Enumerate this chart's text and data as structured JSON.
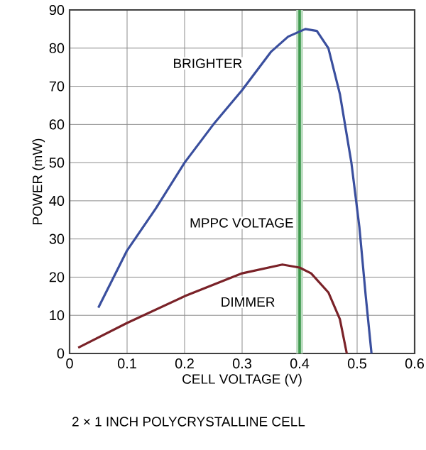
{
  "chart_data": {
    "type": "line",
    "xlabel": "CELL VOLTAGE (V)",
    "ylabel": "POWER (mW)",
    "x": [
      0.05,
      0.1,
      0.15,
      0.2,
      0.25,
      0.3,
      0.35,
      0.38,
      0.41,
      0.43,
      0.45,
      0.47,
      0.49,
      0.504,
      0.515,
      0.525
    ],
    "series": [
      {
        "name": "BRIGHTER",
        "color": "#3a4f9e",
        "values": [
          12,
          27,
          38,
          50,
          60,
          69,
          79,
          83,
          85,
          84.5,
          80,
          68,
          50,
          33,
          15,
          0
        ]
      },
      {
        "name": "DIMMER",
        "color": "#7a2228",
        "x": [
          0.015,
          0.1,
          0.2,
          0.3,
          0.37,
          0.4,
          0.42,
          0.45,
          0.47,
          0.482
        ],
        "values": [
          1.5,
          8,
          15,
          21,
          23.3,
          22.5,
          21,
          16,
          9,
          0
        ]
      }
    ],
    "xlim": [
      0,
      0.6
    ],
    "xticks": [
      0,
      0.1,
      0.2,
      0.3,
      0.4,
      0.5,
      0.6
    ],
    "ylim": [
      0,
      90
    ],
    "yticks": [
      0,
      10,
      20,
      30,
      40,
      50,
      60,
      70,
      80,
      90
    ],
    "grid": true,
    "marker": "none",
    "line_style": "solid",
    "bands": [
      {
        "axis": "x",
        "from": 0.394,
        "to": 0.406,
        "color": "#bcdcc1"
      }
    ],
    "ref_lines": [
      {
        "axis": "x",
        "value": 0.4,
        "label": "MPPC VOLTAGE",
        "color": "#3f9a4f"
      }
    ],
    "annotations": [
      "2 × 1 INCH POLYCRYSTALLINE CELL"
    ]
  }
}
